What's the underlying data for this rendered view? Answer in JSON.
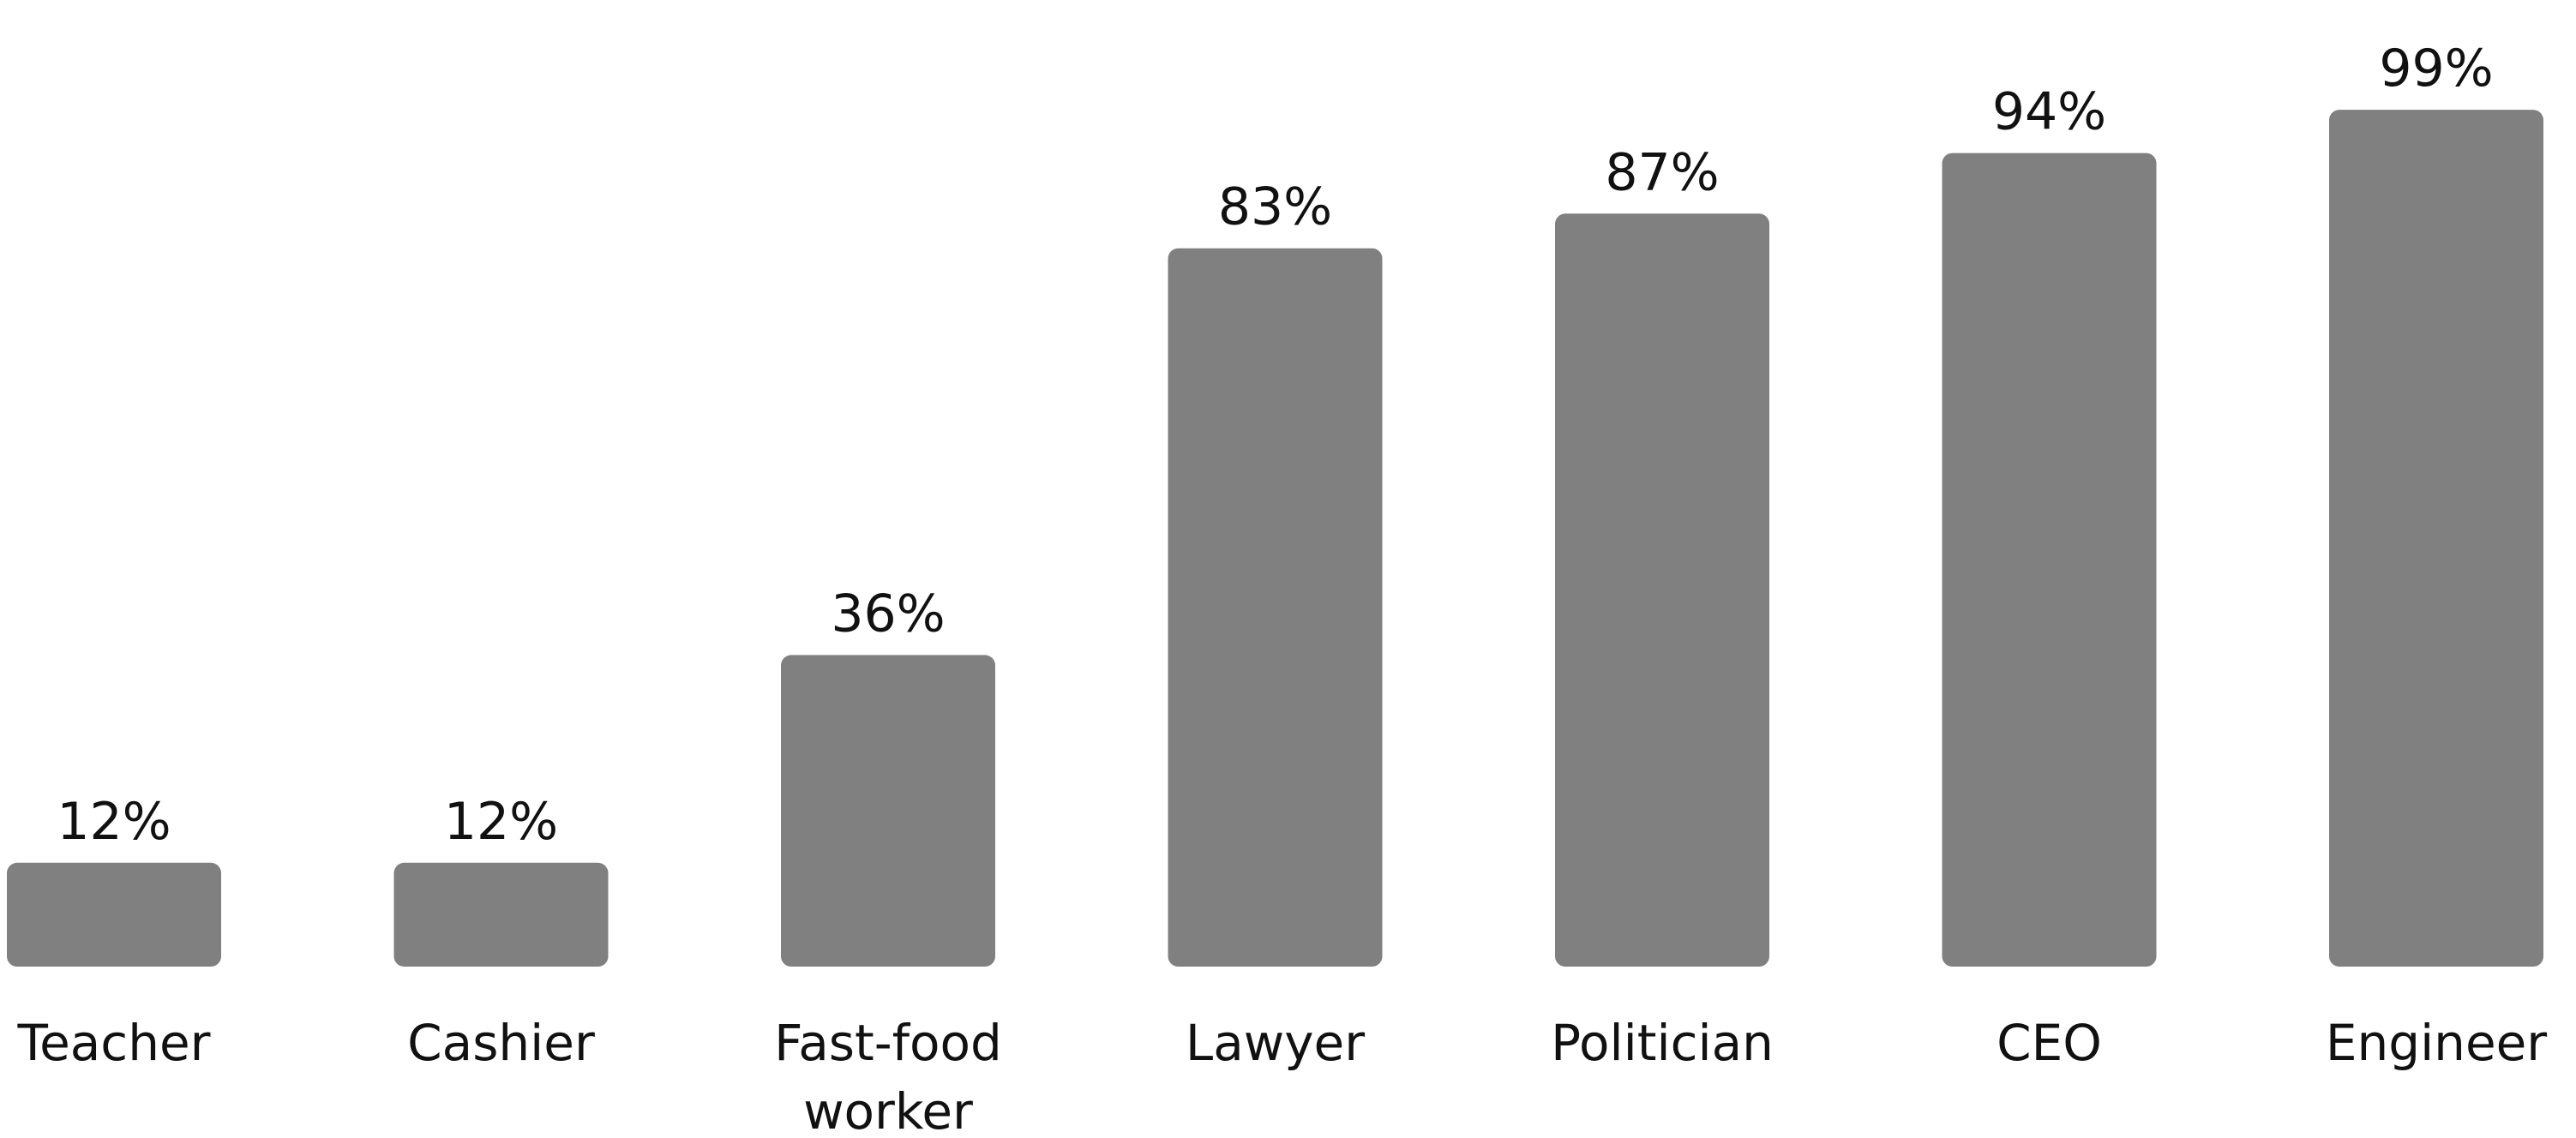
{
  "chart_data": {
    "type": "bar",
    "categories": [
      [
        "Teacher"
      ],
      [
        "Cashier"
      ],
      [
        "Fast-food",
        "worker"
      ],
      [
        "Lawyer"
      ],
      [
        "Politician"
      ],
      [
        "CEO"
      ],
      [
        "Engineer"
      ]
    ],
    "values": [
      12,
      12,
      36,
      83,
      87,
      94,
      99
    ],
    "value_labels": [
      "12%",
      "12%",
      "36%",
      "83%",
      "87%",
      "94%",
      "99%"
    ],
    "ylim": [
      0,
      100
    ],
    "grid": false,
    "legend": "none",
    "colors": {
      "bar": "#808080",
      "text": "#111111",
      "background": "#ffffff"
    }
  }
}
